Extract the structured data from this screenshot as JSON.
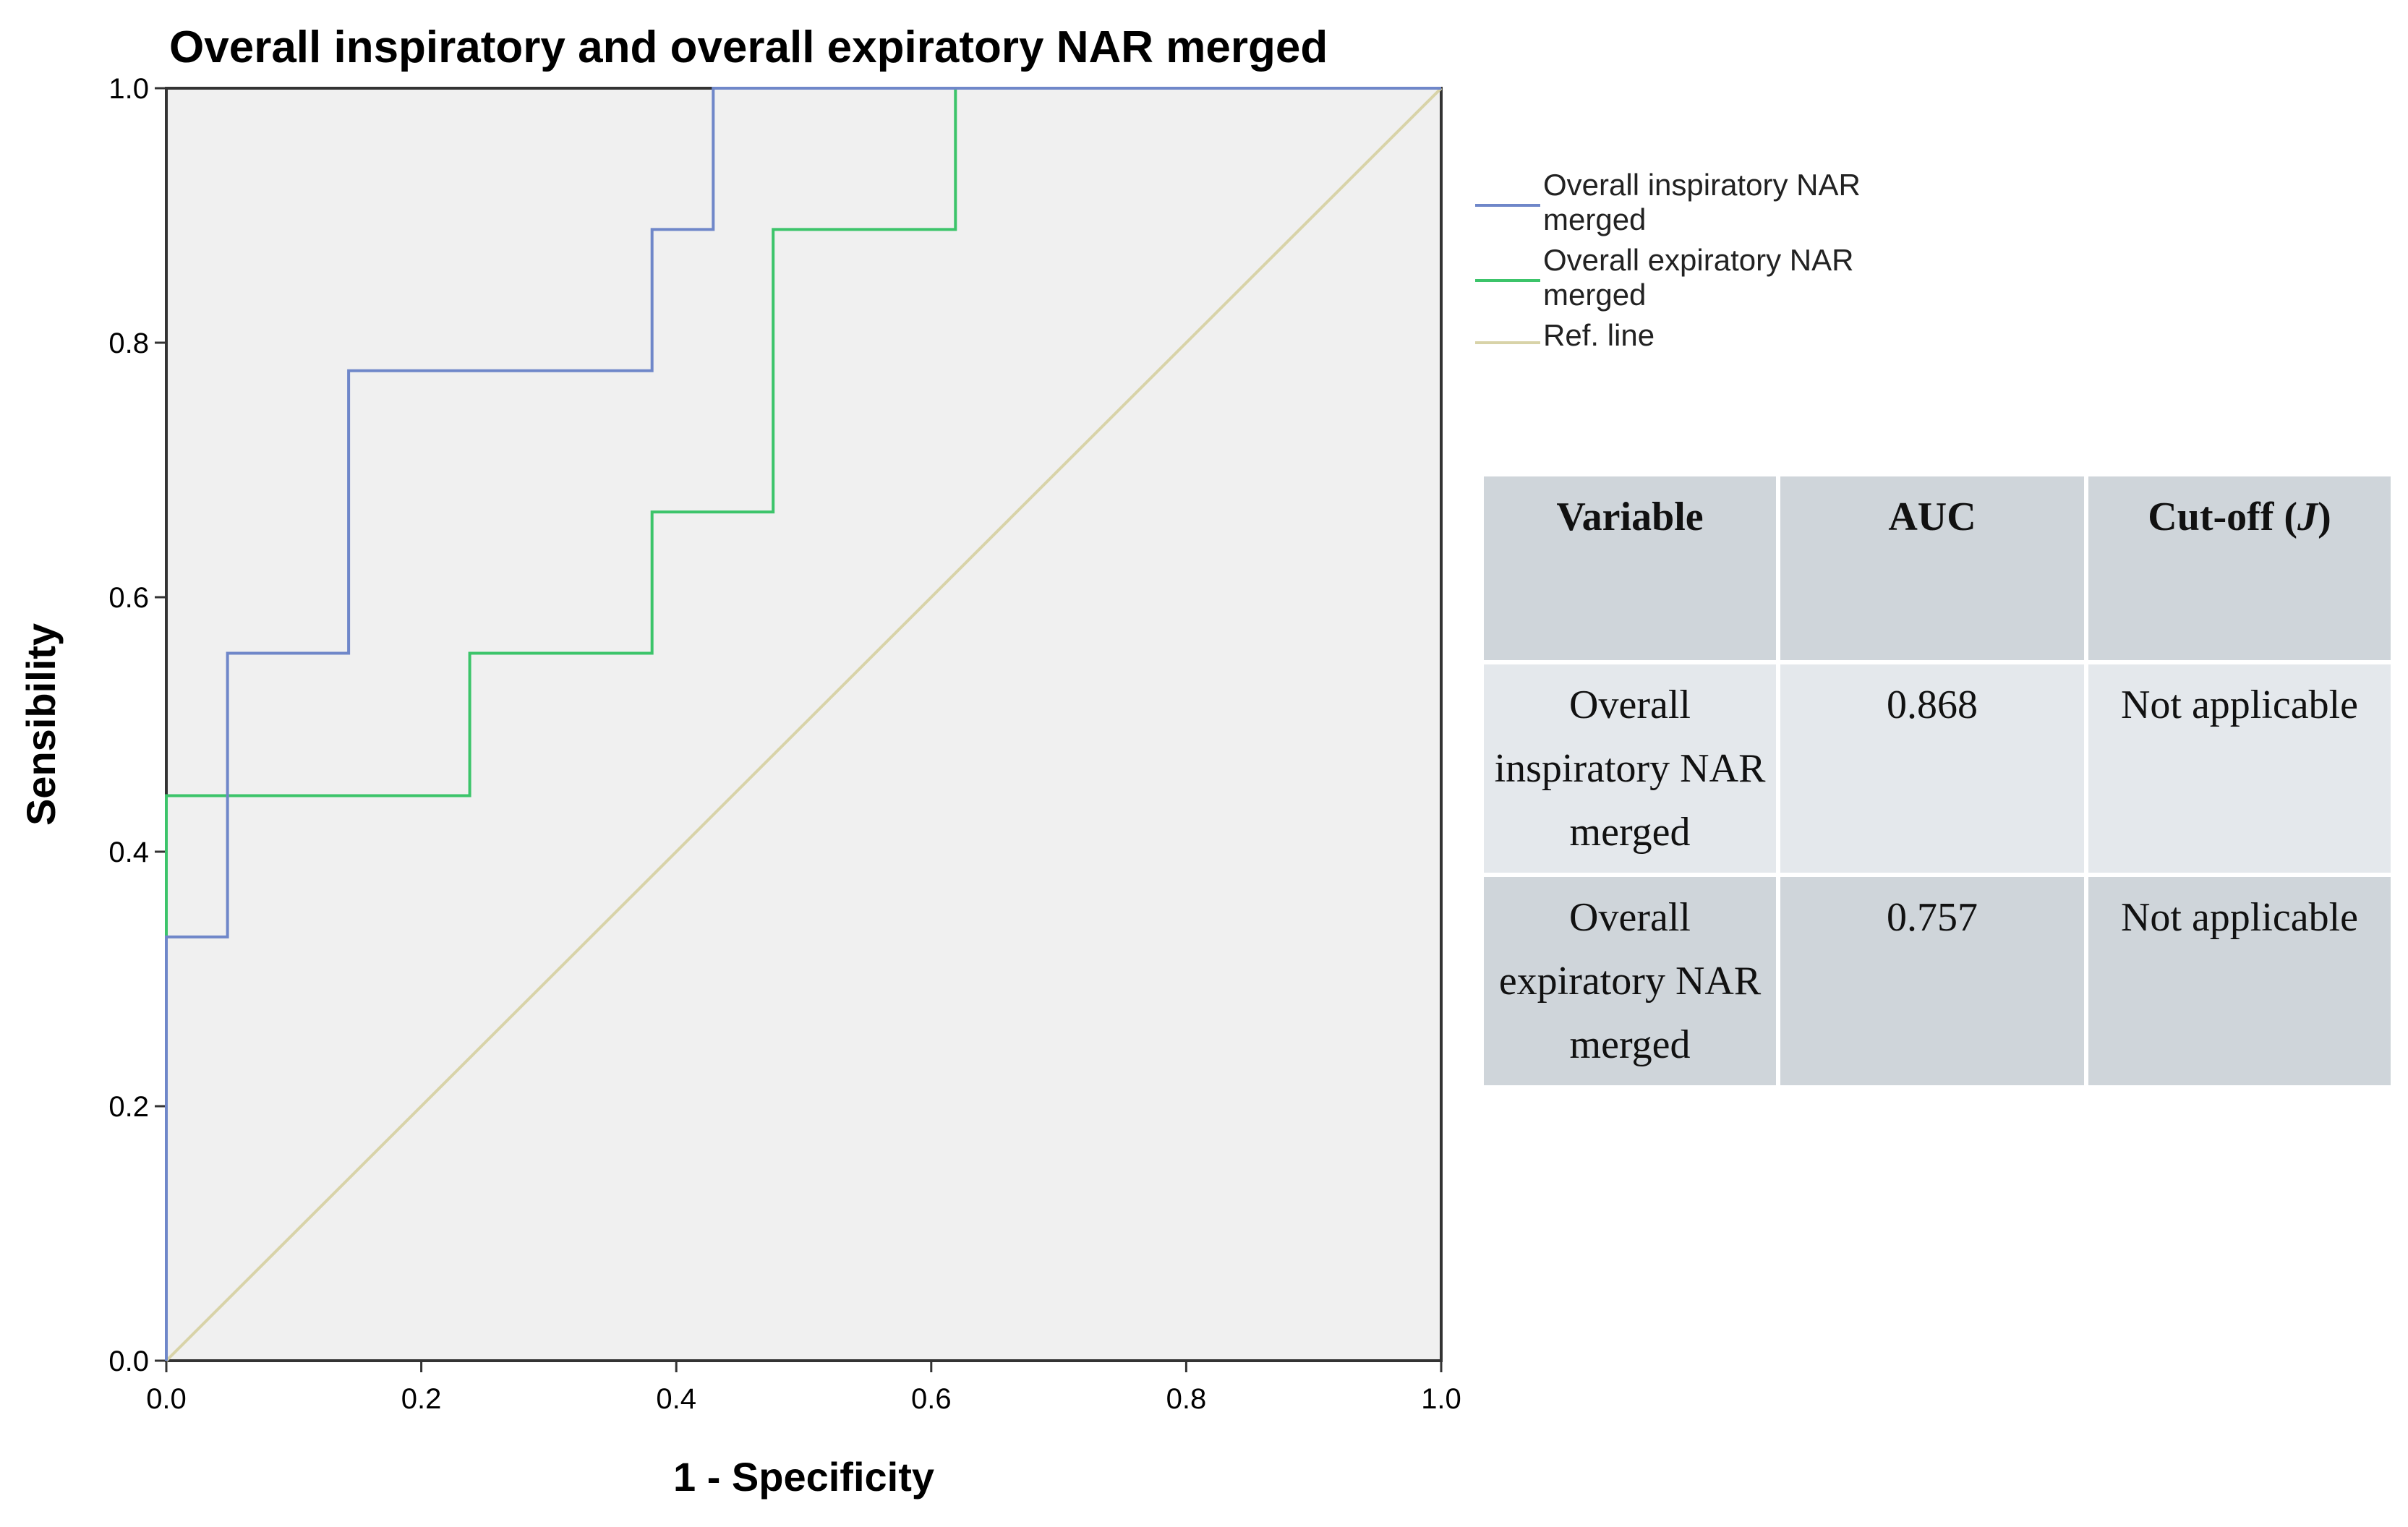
{
  "chart_data": {
    "type": "line",
    "title": "Overall inspiratory and overall expiratory NAR merged",
    "xlabel": "1 - Specificity",
    "ylabel": "Sensibility",
    "xlim": [
      0,
      1
    ],
    "ylim": [
      0,
      1
    ],
    "xticks": [
      "0.0",
      "0.2",
      "0.4",
      "0.6",
      "0.8",
      "1.0"
    ],
    "yticks": [
      "0.0",
      "0.2",
      "0.4",
      "0.6",
      "0.8",
      "1.0"
    ],
    "legend_position": "right",
    "series": [
      {
        "name": "Overall inspiratory NAR merged",
        "color": "#6f87c9",
        "x": [
          0,
          0,
          0.048,
          0.048,
          0.143,
          0.143,
          0.381,
          0.381,
          0.429,
          0.429,
          1.0
        ],
        "y": [
          0,
          0.333,
          0.333,
          0.556,
          0.556,
          0.778,
          0.778,
          0.889,
          0.889,
          1.0,
          1.0
        ]
      },
      {
        "name": "Overall expiratory NAR merged",
        "color": "#3cc46a",
        "x": [
          0,
          0,
          0.238,
          0.238,
          0.381,
          0.381,
          0.476,
          0.476,
          0.619,
          0.619,
          1.0
        ],
        "y": [
          0,
          0.444,
          0.444,
          0.556,
          0.556,
          0.667,
          0.667,
          0.889,
          0.889,
          1.0,
          1.0
        ]
      },
      {
        "name": "Ref. line",
        "color": "#d8d3a8",
        "x": [
          0,
          1
        ],
        "y": [
          0,
          1
        ]
      }
    ]
  },
  "table": {
    "headers": [
      "Variable",
      "AUC",
      "Cut-off ("
    ],
    "header_italic_symbol": "J",
    "header_close": ")",
    "rows": [
      {
        "variable": "Overall inspiratory NAR merged",
        "auc": "0.868",
        "cutoff": "Not applicable"
      },
      {
        "variable": "Overall expiratory NAR merged",
        "auc": "0.757",
        "cutoff": "Not applicable"
      }
    ]
  },
  "colors": {
    "plot_background": "#f0f0f0",
    "table_header_bg": "#cfd5da",
    "table_row_light": "#e4e8ec"
  }
}
